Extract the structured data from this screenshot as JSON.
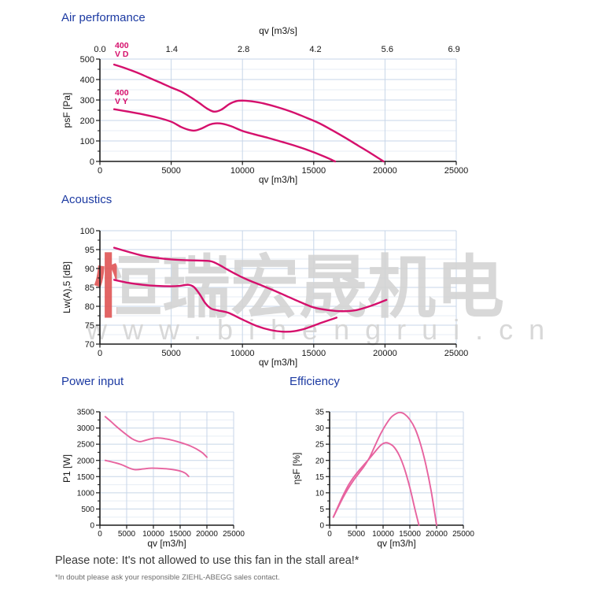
{
  "page": {
    "note": "Please note: It's not allowed to use this fan in the stall area!*",
    "footnote": "*In doubt please ask your responsible ZIEHL-ABEGG sales contact."
  },
  "colors": {
    "heading_blue": "#1c3aa2",
    "curve_primary": "#d5106c",
    "curve_light": "#e7639f",
    "grid_major": "#c7d6e8",
    "grid_minor": "#e7edf5",
    "axis": "#1a1a1a",
    "tick_text": "#161616"
  },
  "watermark": {
    "cjk_text": "恒瑞宏晟机电",
    "url_text": "www.bihengrui.cn",
    "gray": "#d4d4d4",
    "red": "#e05555"
  },
  "chart_data": [
    {
      "type": "line",
      "title": "Air performance",
      "xlabel": "qv [m3/h]",
      "ylabel": "psF [Pa]",
      "x2label": "qv [m3/s]",
      "xlim": [
        0,
        25000
      ],
      "ylim": [
        0,
        500
      ],
      "xticks": [
        0,
        5000,
        10000,
        15000,
        20000,
        25000
      ],
      "yticks": [
        0,
        100,
        200,
        300,
        400,
        500
      ],
      "x2ticks": [
        "0.0",
        "1.4",
        "2.8",
        "4.2",
        "5.6",
        "6.9"
      ],
      "x2scale": 3600,
      "grid": true,
      "curve_color": "#d5106c",
      "series": [
        {
          "name": "400 V D",
          "points": [
            [
              1000,
              473
            ],
            [
              1800,
              455
            ],
            [
              2600,
              434
            ],
            [
              3400,
              410
            ],
            [
              4200,
              386
            ],
            [
              5000,
              361
            ],
            [
              5700,
              341
            ],
            [
              6400,
              312
            ],
            [
              7000,
              284
            ],
            [
              7500,
              259
            ],
            [
              8000,
              243
            ],
            [
              8500,
              252
            ],
            [
              9100,
              281
            ],
            [
              9600,
              295
            ],
            [
              10100,
              297
            ],
            [
              10700,
              293
            ],
            [
              11500,
              283
            ],
            [
              12500,
              264
            ],
            [
              13500,
              241
            ],
            [
              14500,
              213
            ],
            [
              15400,
              186
            ],
            [
              16300,
              152
            ],
            [
              17200,
              116
            ],
            [
              18100,
              78
            ],
            [
              19000,
              40
            ],
            [
              19900,
              0
            ]
          ]
        },
        {
          "name": "400 V Y",
          "points": [
            [
              1000,
              255
            ],
            [
              2000,
              243
            ],
            [
              3000,
              230
            ],
            [
              4000,
              215
            ],
            [
              5000,
              194
            ],
            [
              5700,
              168
            ],
            [
              6300,
              153
            ],
            [
              6700,
              151
            ],
            [
              7200,
              163
            ],
            [
              7700,
              180
            ],
            [
              8100,
              186
            ],
            [
              8600,
              184
            ],
            [
              9200,
              172
            ],
            [
              10000,
              149
            ],
            [
              10800,
              133
            ],
            [
              11800,
              115
            ],
            [
              12800,
              95
            ],
            [
              13800,
              74
            ],
            [
              14800,
              50
            ],
            [
              15800,
              22
            ],
            [
              16500,
              0
            ]
          ]
        }
      ],
      "annotations": [
        {
          "lines": [
            "400",
            "V D"
          ],
          "x": 1050,
          "y": 554
        },
        {
          "lines": [
            "400",
            "V Y"
          ],
          "x": 1050,
          "y": 323
        }
      ]
    },
    {
      "type": "line",
      "title": "Acoustics",
      "xlabel": "qv [m3/h]",
      "ylabel": "Lw(A),5 [dB]",
      "xlim": [
        0,
        25000
      ],
      "ylim": [
        70,
        100
      ],
      "xticks": [
        0,
        5000,
        10000,
        15000,
        20000,
        25000
      ],
      "yticks": [
        70,
        75,
        80,
        85,
        90,
        95,
        100
      ],
      "grid": true,
      "curve_color": "#d5106c",
      "series": [
        {
          "name": "400 V D",
          "points": [
            [
              1000,
              95.5
            ],
            [
              2000,
              94.4
            ],
            [
              3000,
              93.4
            ],
            [
              4000,
              92.8
            ],
            [
              5000,
              92.4
            ],
            [
              6000,
              92.2
            ],
            [
              7000,
              92.1
            ],
            [
              7800,
              91.9
            ],
            [
              8400,
              90.9
            ],
            [
              9000,
              89.6
            ],
            [
              9700,
              88.2
            ],
            [
              10500,
              86.8
            ],
            [
              11300,
              85.6
            ],
            [
              12200,
              84.2
            ],
            [
              13100,
              82.7
            ],
            [
              14000,
              81.2
            ],
            [
              15000,
              79.7
            ],
            [
              16000,
              79.0
            ],
            [
              17000,
              78.7
            ],
            [
              18000,
              79.0
            ],
            [
              19000,
              80.1
            ],
            [
              20100,
              81.7
            ]
          ]
        },
        {
          "name": "400 V Y",
          "points": [
            [
              1000,
              87.0
            ],
            [
              2000,
              86.2
            ],
            [
              3000,
              85.7
            ],
            [
              4000,
              85.4
            ],
            [
              5000,
              85.3
            ],
            [
              5600,
              85.4
            ],
            [
              6200,
              85.7
            ],
            [
              6600,
              85.1
            ],
            [
              7000,
              83.2
            ],
            [
              7400,
              80.8
            ],
            [
              7800,
              79.4
            ],
            [
              8300,
              78.9
            ],
            [
              9000,
              78.3
            ],
            [
              10000,
              76.5
            ],
            [
              11000,
              74.8
            ],
            [
              12000,
              73.7
            ],
            [
              12800,
              73.3
            ],
            [
              13600,
              73.4
            ],
            [
              14500,
              74.2
            ],
            [
              15500,
              75.6
            ],
            [
              16600,
              77.0
            ]
          ]
        }
      ]
    },
    {
      "type": "line",
      "title": "Power input",
      "xlabel": "qv [m3/h]",
      "ylabel": "P1 [W]",
      "xlim": [
        0,
        25000
      ],
      "ylim": [
        0,
        3500
      ],
      "xticks": [
        0,
        5000,
        10000,
        15000,
        20000,
        25000
      ],
      "yticks": [
        0,
        500,
        1000,
        1500,
        2000,
        2500,
        3000,
        3500
      ],
      "grid": true,
      "curve_color": "#e7639f",
      "series": [
        {
          "name": "400 V D",
          "points": [
            [
              1000,
              3350
            ],
            [
              2000,
              3210
            ],
            [
              3000,
              3060
            ],
            [
              4000,
              2920
            ],
            [
              5000,
              2790
            ],
            [
              6000,
              2670
            ],
            [
              7000,
              2595
            ],
            [
              7600,
              2580
            ],
            [
              8400,
              2615
            ],
            [
              9400,
              2660
            ],
            [
              10400,
              2690
            ],
            [
              11400,
              2688
            ],
            [
              12400,
              2662
            ],
            [
              13400,
              2628
            ],
            [
              14400,
              2585
            ],
            [
              15400,
              2535
            ],
            [
              16400,
              2478
            ],
            [
              17400,
              2408
            ],
            [
              18300,
              2330
            ],
            [
              19200,
              2230
            ],
            [
              20000,
              2100
            ]
          ]
        },
        {
          "name": "400 V Y",
          "points": [
            [
              1000,
              2000
            ],
            [
              2000,
              1963
            ],
            [
              3000,
              1922
            ],
            [
              4000,
              1872
            ],
            [
              5000,
              1800
            ],
            [
              5600,
              1756
            ],
            [
              6300,
              1720
            ],
            [
              6900,
              1714
            ],
            [
              7700,
              1728
            ],
            [
              8700,
              1748
            ],
            [
              9700,
              1760
            ],
            [
              10700,
              1757
            ],
            [
              11700,
              1748
            ],
            [
              12700,
              1737
            ],
            [
              13700,
              1716
            ],
            [
              14700,
              1685
            ],
            [
              15500,
              1645
            ],
            [
              16100,
              1590
            ],
            [
              16600,
              1505
            ]
          ]
        }
      ]
    },
    {
      "type": "line",
      "title": "Efficiency",
      "xlabel": "qv [m3/h]",
      "ylabel": "ηsF [%]",
      "xlim": [
        0,
        25000
      ],
      "ylim": [
        0,
        35
      ],
      "xticks": [
        0,
        5000,
        10000,
        15000,
        20000,
        25000
      ],
      "yticks": [
        0,
        5,
        10,
        15,
        20,
        25,
        30,
        35
      ],
      "grid": true,
      "curve_color": "#e7639f",
      "series": [
        {
          "name": "400 V D",
          "points": [
            [
              700,
              2.5
            ],
            [
              1500,
              5.2
            ],
            [
              2500,
              8.5
            ],
            [
              3500,
              11.4
            ],
            [
              4500,
              13.9
            ],
            [
              5500,
              16.1
            ],
            [
              6500,
              18.3
            ],
            [
              7500,
              21.0
            ],
            [
              8500,
              24.6
            ],
            [
              9500,
              28.1
            ],
            [
              10500,
              31.0
            ],
            [
              11500,
              33.3
            ],
            [
              12500,
              34.5
            ],
            [
              13200,
              34.8
            ],
            [
              14000,
              34.3
            ],
            [
              15000,
              32.6
            ],
            [
              16000,
              29.7
            ],
            [
              17000,
              25.0
            ],
            [
              18000,
              18.6
            ],
            [
              19000,
              10.4
            ],
            [
              20000,
              0
            ]
          ]
        },
        {
          "name": "400 V Y",
          "points": [
            [
              700,
              2.5
            ],
            [
              1500,
              5.5
            ],
            [
              2500,
              9.1
            ],
            [
              3500,
              12.3
            ],
            [
              4500,
              14.8
            ],
            [
              5500,
              16.9
            ],
            [
              6500,
              18.8
            ],
            [
              7500,
              20.7
            ],
            [
              8500,
              22.7
            ],
            [
              9500,
              24.6
            ],
            [
              10300,
              25.4
            ],
            [
              11000,
              25.3
            ],
            [
              12000,
              24.2
            ],
            [
              13000,
              21.6
            ],
            [
              14000,
              17.4
            ],
            [
              15000,
              11.6
            ],
            [
              16000,
              4.6
            ],
            [
              16700,
              0
            ]
          ]
        }
      ]
    }
  ]
}
